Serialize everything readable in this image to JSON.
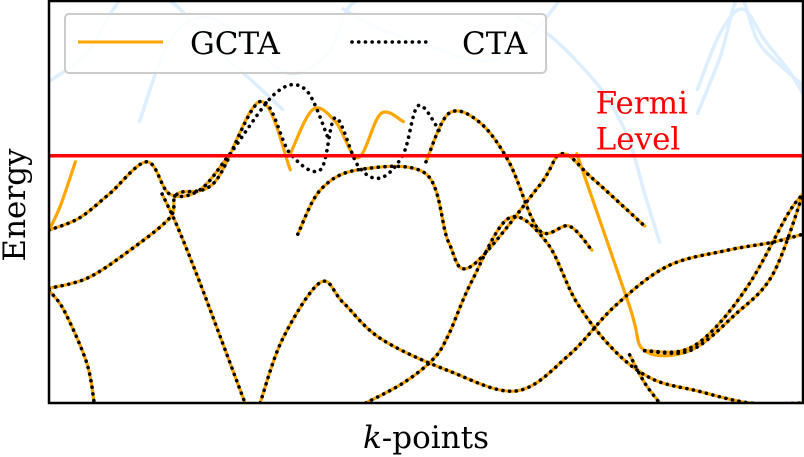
{
  "chart_data": {
    "type": "line",
    "title": "",
    "xlabel_italic": "k",
    "xlabel_rest": "-points",
    "ylabel": "Energy",
    "xlim": [
      0,
      1
    ],
    "ylim": [
      0,
      1
    ],
    "grid": false,
    "legend": {
      "placement": "top-left",
      "entries": [
        {
          "label": "GCTA",
          "style": "solid",
          "color": "#FFA500"
        },
        {
          "label": "CTA",
          "style": "dotted",
          "color": "#000000"
        }
      ]
    },
    "annotation": {
      "lines": [
        "Fermi",
        "Level"
      ],
      "color": "#FF0000",
      "x": 0.725,
      "y": 0.72
    },
    "fermi_level": {
      "y": 0.615,
      "color": "#FF0000"
    },
    "background_bands_color": "#DDEEFF",
    "background_bands": [
      {
        "name": "",
        "x": [
          0.0,
          0.05,
          0.1,
          0.16,
          0.21,
          0.27,
          0.31
        ],
        "y": [
          0.8,
          0.87,
          1.01,
          1.0,
          0.9,
          0.8,
          0.73
        ]
      },
      {
        "name": "",
        "x": [
          0.12,
          0.16,
          0.21,
          0.265,
          0.32,
          0.37,
          0.4,
          0.44
        ],
        "y": [
          0.7,
          0.9,
          0.96,
          0.89,
          0.82,
          0.87,
          0.99,
          1.01
        ]
      },
      {
        "name": "",
        "x": [
          0.39,
          0.44,
          0.5,
          0.58,
          0.63,
          0.66,
          0.68
        ],
        "y": [
          0.98,
          0.93,
          0.89,
          0.85,
          0.9,
          0.96,
          1.01
        ]
      },
      {
        "name": "",
        "x": [
          0.62,
          0.66,
          0.7,
          0.74,
          0.77,
          0.79,
          0.81
        ],
        "y": [
          0.96,
          0.92,
          0.85,
          0.76,
          0.65,
          0.52,
          0.4
        ]
      },
      {
        "name": "",
        "x": [
          0.86,
          0.89,
          0.92,
          0.95,
          0.98,
          1.0
        ],
        "y": [
          0.78,
          0.92,
          0.98,
          0.9,
          0.83,
          0.77
        ]
      },
      {
        "name": "",
        "x": [
          0.86,
          0.89,
          0.915,
          0.94,
          0.97,
          1.0
        ],
        "y": [
          0.72,
          0.86,
          1.01,
          0.9,
          0.84,
          0.79
        ]
      }
    ],
    "series": [
      {
        "name": "GCTA",
        "color": "#FFA500",
        "style": "solid",
        "bands": [
          {
            "x": [
              0.0,
              0.015,
              0.035
            ],
            "y": [
              0.43,
              0.49,
              0.6
            ]
          },
          {
            "x": [
              0.0,
              0.04,
              0.08,
              0.13,
              0.16,
              0.2,
              0.24
            ],
            "y": [
              0.43,
              0.46,
              0.52,
              0.6,
              0.52,
              0.53,
              0.62
            ]
          },
          {
            "x": [
              0.0,
              0.05,
              0.1,
              0.16,
              0.17,
              0.22,
              0.28,
              0.32
            ],
            "y": [
              0.285,
              0.31,
              0.37,
              0.46,
              0.52,
              0.55,
              0.75,
              0.58
            ]
          },
          {
            "x": [
              0.15,
              0.17,
              0.2,
              0.24,
              0.26
            ],
            "y": [
              0.52,
              0.44,
              0.3,
              0.1,
              0.0
            ]
          },
          {
            "x": [
              0.0,
              0.02,
              0.05,
              0.06
            ],
            "y": [
              0.28,
              0.23,
              0.1,
              0.0
            ]
          },
          {
            "x": [
              0.33,
              0.36,
              0.41,
              0.5,
              0.53,
              0.56,
              0.65,
              0.68,
              0.72,
              0.79
            ],
            "y": [
              0.42,
              0.53,
              0.58,
              0.57,
              0.4,
              0.34,
              0.54,
              0.62,
              0.56,
              0.44
            ]
          },
          {
            "x": [
              0.32,
              0.35,
              0.38,
              0.41,
              0.44,
              0.47
            ],
            "y": [
              0.62,
              0.73,
              0.7,
              0.61,
              0.72,
              0.7
            ]
          },
          {
            "x": [
              0.5,
              0.53,
              0.57,
              0.61,
              0.65,
              0.69,
              0.72
            ],
            "y": [
              0.6,
              0.72,
              0.7,
              0.6,
              0.43,
              0.44,
              0.38
            ]
          },
          {
            "x": [
              0.28,
              0.31,
              0.36,
              0.39,
              0.44,
              0.53,
              0.62,
              0.69,
              0.75,
              0.82,
              0.9,
              0.96,
              1.0
            ],
            "y": [
              0.0,
              0.16,
              0.3,
              0.25,
              0.16,
              0.08,
              0.03,
              0.12,
              0.24,
              0.34,
              0.38,
              0.4,
              0.42
            ]
          },
          {
            "x": [
              0.42,
              0.47,
              0.51,
              0.53,
              0.56,
              0.61,
              0.66,
              0.7,
              0.75,
              0.8,
              0.86,
              0.93,
              1.0
            ],
            "y": [
              0.0,
              0.05,
              0.11,
              0.17,
              0.3,
              0.46,
              0.4,
              0.25,
              0.13,
              0.06,
              0.03,
              0.0,
              0.0
            ]
          },
          {
            "x": [
              0.7,
              0.77,
              0.79,
              0.85,
              0.91,
              0.96,
              1.0
            ],
            "y": [
              0.62,
              0.24,
              0.13,
              0.13,
              0.22,
              0.32,
              0.52
            ]
          },
          {
            "x": [
              0.79,
              0.84,
              0.88,
              0.93,
              0.98,
              1.0
            ],
            "y": [
              0.13,
              0.13,
              0.18,
              0.3,
              0.47,
              0.52
            ]
          },
          {
            "x": [
              0.77,
              0.79,
              0.81
            ],
            "y": [
              0.12,
              0.05,
              0.0
            ]
          }
        ]
      },
      {
        "name": "CTA",
        "color": "#000000",
        "style": "dotted",
        "bands": [
          {
            "x": [
              0.0,
              0.04,
              0.08,
              0.13,
              0.16,
              0.2,
              0.24,
              0.3,
              0.34,
              0.37
            ],
            "y": [
              0.43,
              0.46,
              0.52,
              0.6,
              0.52,
              0.53,
              0.62,
              0.77,
              0.78,
              0.66
            ]
          },
          {
            "x": [
              0.0,
              0.05,
              0.1,
              0.16,
              0.17,
              0.22,
              0.28,
              0.32,
              0.36,
              0.38,
              0.41,
              0.44,
              0.47,
              0.49,
              0.52
            ],
            "y": [
              0.285,
              0.31,
              0.37,
              0.46,
              0.52,
              0.55,
              0.75,
              0.62,
              0.58,
              0.71,
              0.59,
              0.56,
              0.62,
              0.74,
              0.67
            ]
          },
          {
            "x": [
              0.15,
              0.17,
              0.2,
              0.24,
              0.26
            ],
            "y": [
              0.52,
              0.44,
              0.3,
              0.1,
              0.0
            ]
          },
          {
            "x": [
              0.0,
              0.02,
              0.05,
              0.06
            ],
            "y": [
              0.28,
              0.23,
              0.1,
              0.0
            ]
          },
          {
            "x": [
              0.33,
              0.36,
              0.41,
              0.5,
              0.53,
              0.56,
              0.65,
              0.68,
              0.72,
              0.79
            ],
            "y": [
              0.42,
              0.53,
              0.58,
              0.57,
              0.4,
              0.34,
              0.54,
              0.62,
              0.56,
              0.44
            ]
          },
          {
            "x": [
              0.5,
              0.53,
              0.57,
              0.61,
              0.65,
              0.69,
              0.72
            ],
            "y": [
              0.6,
              0.72,
              0.7,
              0.6,
              0.43,
              0.44,
              0.38
            ]
          },
          {
            "x": [
              0.28,
              0.31,
              0.36,
              0.39,
              0.44,
              0.53,
              0.62,
              0.69,
              0.75,
              0.82,
              0.9,
              0.96,
              1.0
            ],
            "y": [
              0.0,
              0.16,
              0.3,
              0.25,
              0.16,
              0.08,
              0.03,
              0.12,
              0.24,
              0.34,
              0.38,
              0.4,
              0.42
            ]
          },
          {
            "x": [
              0.42,
              0.47,
              0.51,
              0.53,
              0.56,
              0.61,
              0.66,
              0.7,
              0.75,
              0.8,
              0.86,
              0.93,
              1.0
            ],
            "y": [
              0.0,
              0.05,
              0.11,
              0.17,
              0.3,
              0.46,
              0.4,
              0.25,
              0.13,
              0.06,
              0.03,
              0.0,
              0.0
            ]
          },
          {
            "x": [
              0.79,
              0.84,
              0.88,
              0.93,
              0.98,
              1.0
            ],
            "y": [
              0.13,
              0.13,
              0.18,
              0.3,
              0.47,
              0.52
            ]
          },
          {
            "x": [
              0.79,
              0.85,
              0.91,
              0.96,
              1.0
            ],
            "y": [
              0.13,
              0.13,
              0.22,
              0.32,
              0.52
            ]
          },
          {
            "x": [
              0.77,
              0.79,
              0.81
            ],
            "y": [
              0.12,
              0.05,
              0.0
            ]
          }
        ]
      }
    ]
  }
}
